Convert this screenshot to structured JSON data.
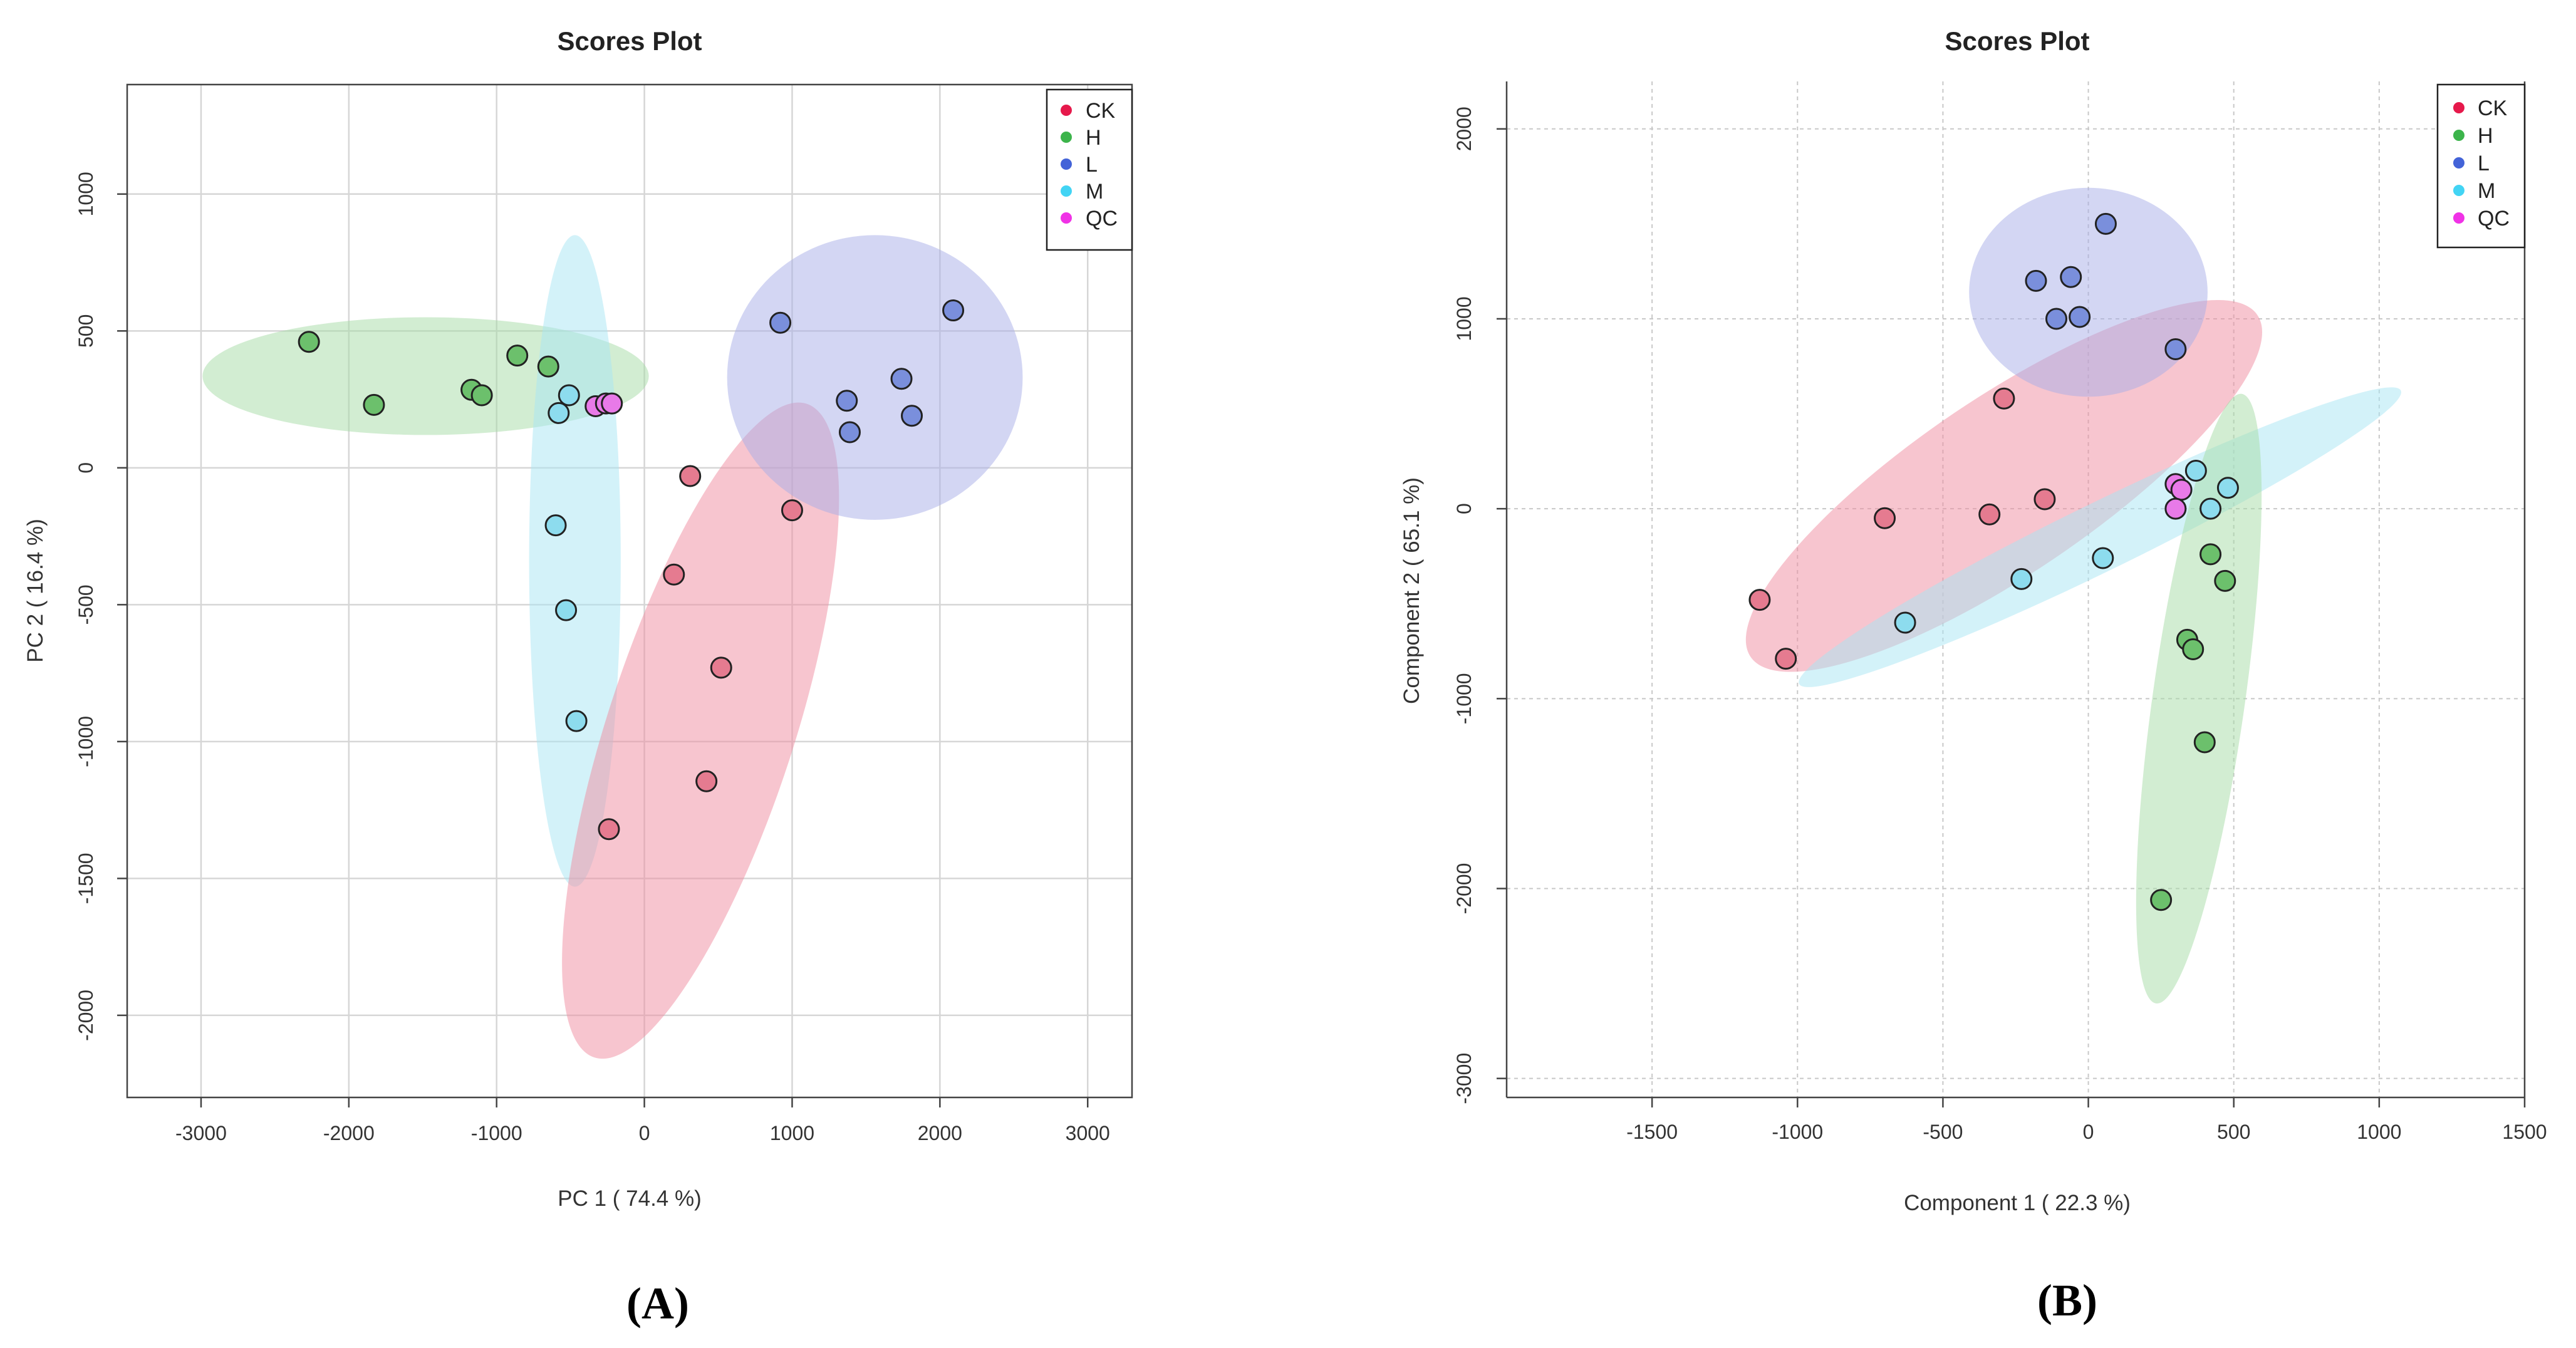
{
  "colors": {
    "CK": "#e6194b",
    "H": "#3cb44b",
    "L": "#4363d8",
    "M": "#42d4f4",
    "QC": "#f032e6",
    "ellipse_CK": "#f08ca0",
    "ellipse_H": "#a6dca6",
    "ellipse_L": "#a8aee8",
    "ellipse_M": "#a8e6f4",
    "point_CK": "#e57b90",
    "point_H": "#6cc06c",
    "point_L": "#7a8fdc",
    "point_M": "#8ddcee",
    "point_QC": "#e87ae8"
  },
  "chart_data": [
    {
      "type": "scatter",
      "title": "Scores Plot",
      "panel_label": "(A)",
      "xlabel": "PC 1 ( 74.4 %)",
      "ylabel": "PC 2 ( 16.4 %)",
      "xlim": [
        -3500,
        3300
      ],
      "ylim": [
        -2300,
        1400
      ],
      "xticks": [
        -3000,
        -2000,
        -1000,
        0,
        1000,
        2000,
        3000
      ],
      "yticks": [
        -2000,
        -1500,
        -1000,
        -500,
        0,
        500,
        1000
      ],
      "grid": true,
      "legend": {
        "position": "top-right",
        "entries": [
          "CK",
          "H",
          "L",
          "M",
          "QC"
        ]
      },
      "ellipses": [
        {
          "group": "H",
          "cx": -1480,
          "cy": 335,
          "rx": 1510,
          "ry": 215,
          "angle": 0
        },
        {
          "group": "M",
          "cx": -470,
          "cy": -340,
          "rx": 1190,
          "ry": 310,
          "angle": -90
        },
        {
          "group": "CK",
          "cx": 380,
          "cy": -960,
          "rx": 1300,
          "ry": 570,
          "angle": -72
        },
        {
          "group": "L",
          "cx": 1560,
          "cy": 330,
          "rx": 1000,
          "ry": 520,
          "angle": 0
        }
      ],
      "series": [
        {
          "name": "CK",
          "points": [
            [
              310,
              -30
            ],
            [
              1000,
              -155
            ],
            [
              200,
              -390
            ],
            [
              520,
              -730
            ],
            [
              420,
              -1145
            ],
            [
              -240,
              -1320
            ]
          ]
        },
        {
          "name": "H",
          "points": [
            [
              -2270,
              460
            ],
            [
              -1830,
              230
            ],
            [
              -1170,
              285
            ],
            [
              -1100,
              265
            ],
            [
              -860,
              410
            ],
            [
              -650,
              370
            ]
          ]
        },
        {
          "name": "L",
          "points": [
            [
              920,
              530
            ],
            [
              2090,
              575
            ],
            [
              1740,
              325
            ],
            [
              1370,
              245
            ],
            [
              1390,
              130
            ],
            [
              1810,
              190
            ]
          ]
        },
        {
          "name": "M",
          "points": [
            [
              -510,
              265
            ],
            [
              -580,
              200
            ],
            [
              -600,
              -210
            ],
            [
              -530,
              -520
            ],
            [
              -460,
              -925
            ]
          ]
        },
        {
          "name": "QC",
          "points": [
            [
              -330,
              225
            ],
            [
              -260,
              235
            ],
            [
              -220,
              235
            ]
          ]
        }
      ]
    },
    {
      "type": "scatter",
      "title": "Scores Plot",
      "panel_label": "(B)",
      "xlabel": "Component 1 ( 22.3 %)",
      "ylabel": "Component 2 ( 65.1 %)",
      "xlim": [
        -2000,
        1500
      ],
      "ylim": [
        -3100,
        2250
      ],
      "xticks": [
        -1500,
        -1000,
        -500,
        0,
        500,
        1000,
        1500
      ],
      "yticks": [
        -3000,
        -2000,
        -1000,
        0,
        1000,
        2000
      ],
      "grid": true,
      "legend": {
        "position": "top-right",
        "entries": [
          "CK",
          "H",
          "L",
          "M",
          "QC"
        ]
      },
      "ellipses": [
        {
          "group": "CK",
          "cx": -290,
          "cy": 120,
          "rx": 1160,
          "ry": 390,
          "angle": -34
        },
        {
          "group": "L",
          "cx": 0,
          "cy": 1140,
          "rx": 410,
          "ry": 550,
          "angle": 0
        },
        {
          "group": "M",
          "cx": 40,
          "cy": -150,
          "rx": 1220,
          "ry": 160,
          "angle": -26
        },
        {
          "group": "H",
          "cx": 380,
          "cy": -1000,
          "rx": 1600,
          "ry": 160,
          "angle": -82
        }
      ],
      "series": [
        {
          "name": "CK",
          "points": [
            [
              -290,
              580
            ],
            [
              -700,
              -50
            ],
            [
              -340,
              -30
            ],
            [
              -150,
              50
            ],
            [
              -1130,
              -480
            ],
            [
              -1040,
              -790
            ]
          ]
        },
        {
          "name": "H",
          "points": [
            [
              420,
              -240
            ],
            [
              470,
              -380
            ],
            [
              340,
              -690
            ],
            [
              360,
              -740
            ],
            [
              400,
              -1230
            ],
            [
              250,
              -2060
            ]
          ]
        },
        {
          "name": "L",
          "points": [
            [
              60,
              1500
            ],
            [
              -180,
              1200
            ],
            [
              -60,
              1220
            ],
            [
              -110,
              1000
            ],
            [
              -30,
              1010
            ],
            [
              300,
              840
            ]
          ]
        },
        {
          "name": "M",
          "points": [
            [
              370,
              200
            ],
            [
              480,
              110
            ],
            [
              420,
              0
            ],
            [
              50,
              -260
            ],
            [
              -230,
              -370
            ],
            [
              -630,
              -600
            ]
          ]
        },
        {
          "name": "QC",
          "points": [
            [
              300,
              130
            ],
            [
              320,
              100
            ],
            [
              300,
              0
            ]
          ]
        }
      ]
    }
  ]
}
